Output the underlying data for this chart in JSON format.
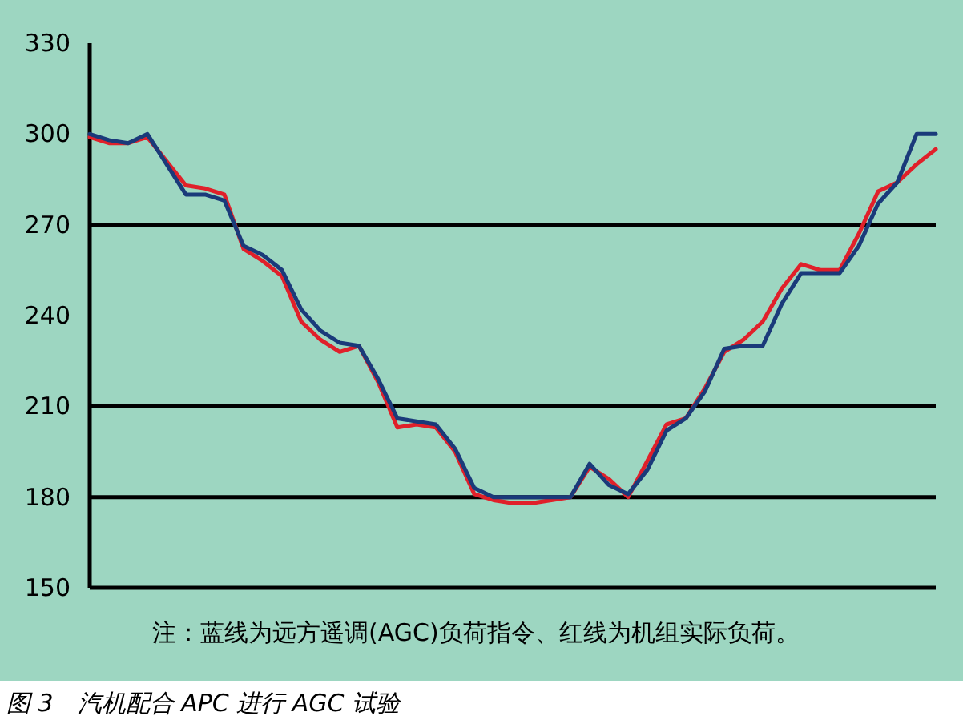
{
  "chart_data": {
    "type": "line",
    "annotations": [
      "注：蓝线为远方遥调(AGC)负荷指令、红线为机组实际负荷。",
      "图 3　汽机配合 APC 进行 AGC 试验"
    ],
    "categories": [
      null,
      null,
      null,
      null,
      null,
      null,
      null,
      null,
      null,
      null,
      null,
      null,
      null,
      null,
      null,
      null,
      null,
      null,
      null,
      null,
      null,
      null,
      null,
      null,
      null,
      null,
      null,
      null,
      null,
      null,
      null,
      null,
      null,
      null,
      null,
      null,
      null,
      null,
      null,
      null,
      null,
      null,
      null,
      null,
      null
    ],
    "ylim": [
      150,
      330
    ],
    "yticks": [
      150,
      180,
      210,
      240,
      270,
      300,
      330
    ],
    "ref_lines": [
      {
        "axis": "y",
        "value": 180
      },
      {
        "axis": "y",
        "value": 210
      },
      {
        "axis": "y",
        "value": 270
      }
    ],
    "series": [
      {
        "color": "#e0202a",
        "values": [
          299,
          297,
          297,
          299,
          291,
          283,
          282,
          280,
          262,
          258,
          253,
          238,
          232,
          228,
          230,
          218,
          203,
          204,
          203,
          195,
          181,
          179,
          178,
          178,
          179,
          180,
          190,
          186,
          180,
          192,
          204,
          206,
          216,
          228,
          232,
          238,
          249,
          257,
          255,
          255,
          267,
          281,
          284,
          290,
          295
        ]
      },
      {
        "color": "#1a3a7a",
        "values": [
          300,
          298,
          297,
          300,
          290,
          280,
          280,
          278,
          263,
          260,
          255,
          242,
          235,
          231,
          230,
          219,
          206,
          205,
          204,
          196,
          183,
          180,
          180,
          180,
          180,
          180,
          191,
          184,
          181,
          189,
          202,
          206,
          215,
          229,
          230,
          230,
          244,
          254,
          254,
          254,
          263,
          277,
          284,
          300,
          300
        ]
      }
    ]
  }
}
